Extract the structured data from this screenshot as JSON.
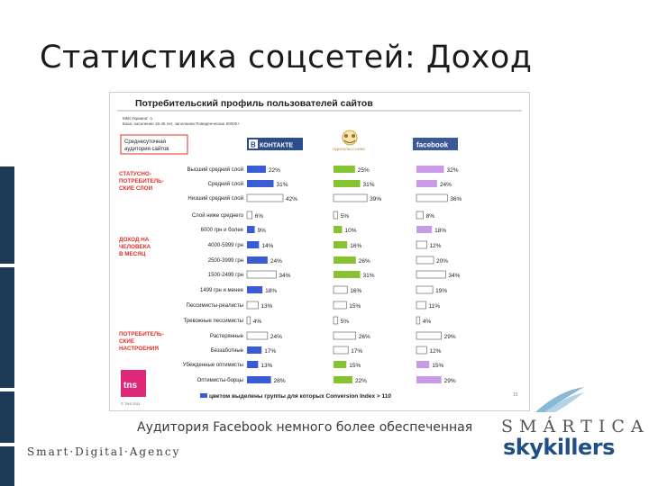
{
  "slide": {
    "title": "Статистика соцсетей: Доход"
  },
  "chart": {
    "title": "Потребительский профиль пользователей сайтов",
    "source_lines": [
      "MMI Украина' -1",
      "База: население 16-45 лет, заполнили Поведенческие 50000+"
    ],
    "legend_note": "Среднесуточная аудитория сайтов",
    "sites": [
      {
        "name": "В КОНТАКТЕ",
        "color": "#3b5bd4"
      },
      {
        "name": "ОДНОКЛАССНИКИ",
        "color": "#86c232"
      },
      {
        "name": "facebook",
        "color": "#c99ae6"
      }
    ],
    "groups": [
      {
        "label": "СТАТУСНО-ПОТРЕБИТЕЛЬ-СКИЕ СЛОИ",
        "color": "#e0302a"
      },
      {
        "label": "ДОХОД НА ЧЕЛОВЕКА В МЕСЯЦ",
        "color": "#e0302a"
      },
      {
        "label": "ПОТРЕБИТЕЛЬ-СКИЕ НАСТРОЕНИЯ",
        "color": "#e0302a"
      }
    ],
    "footnote": "цветом выделены группы для которых Conversion Index >  110",
    "tns_logo": "tns",
    "page_num": "15",
    "copyright": "© TNS 2011"
  },
  "chart_data": {
    "type": "bar",
    "title": "Потребительский профиль пользователей сайтов",
    "categories": [
      "Высший средний слой",
      "Средний слой",
      "Низший средний слой",
      "Слой ниже среднего",
      "6000 грн и более",
      "4000-5999 грн",
      "2500-3999 грн",
      "1500-2499 грн",
      "1499 грн и менее",
      "Пессимисты-реалисты",
      "Тревожные пессимисты",
      "Растерянные",
      "Беззаботные",
      "Убежденные оптимисты",
      "Оптимисты-борцы"
    ],
    "series": [
      {
        "name": "В КОНТАКТЕ",
        "values": [
          22,
          31,
          42,
          6,
          9,
          14,
          24,
          34,
          18,
          13,
          4,
          24,
          17,
          13,
          28
        ]
      },
      {
        "name": "ОДНОКЛАССНИКИ",
        "values": [
          25,
          31,
          39,
          5,
          10,
          16,
          26,
          31,
          16,
          15,
          5,
          26,
          17,
          15,
          22
        ]
      },
      {
        "name": "facebook",
        "values": [
          32,
          24,
          36,
          8,
          18,
          12,
          20,
          34,
          19,
          11,
          4,
          29,
          12,
          15,
          29
        ]
      }
    ],
    "highlighted": [
      [
        true,
        true,
        false,
        false,
        true,
        true,
        true,
        false,
        true,
        false,
        false,
        false,
        true,
        true,
        true
      ],
      [
        true,
        true,
        false,
        false,
        true,
        true,
        true,
        true,
        false,
        false,
        false,
        false,
        false,
        true,
        true
      ],
      [
        true,
        true,
        false,
        false,
        true,
        false,
        false,
        false,
        false,
        false,
        false,
        false,
        false,
        true,
        true
      ]
    ],
    "value_labels": [
      [
        "22%",
        "31%",
        "42%",
        "6%",
        "9%",
        "14%",
        "24%",
        "34%",
        "18%",
        "13%",
        "4%",
        "24%",
        "17%",
        "13%",
        "28%"
      ],
      [
        "25%",
        "31%",
        "39%",
        "5%",
        "10%",
        "16%",
        "26%",
        "31%",
        "16%",
        "15%",
        "5%",
        "26%",
        "17%",
        "15%",
        "22%"
      ],
      [
        "32%",
        "24%",
        "36%",
        "8%",
        "18%",
        "12%",
        "20%",
        "34%",
        "19%",
        "11%",
        "4%",
        "29%",
        "12%",
        "15%",
        "29%"
      ]
    ]
  },
  "caption": "Аудитория Facebook немного более обеспеченная",
  "agency": "Smart·Digital·Agency",
  "brand": {
    "smartica": "SMÁRTICA",
    "skykillers": "skykillers"
  },
  "colors": {
    "title_text": "#1b1b1b",
    "side_bar": "#1d3a57",
    "group_label": "#e0302a",
    "brand_blue": "#1f4f83"
  }
}
